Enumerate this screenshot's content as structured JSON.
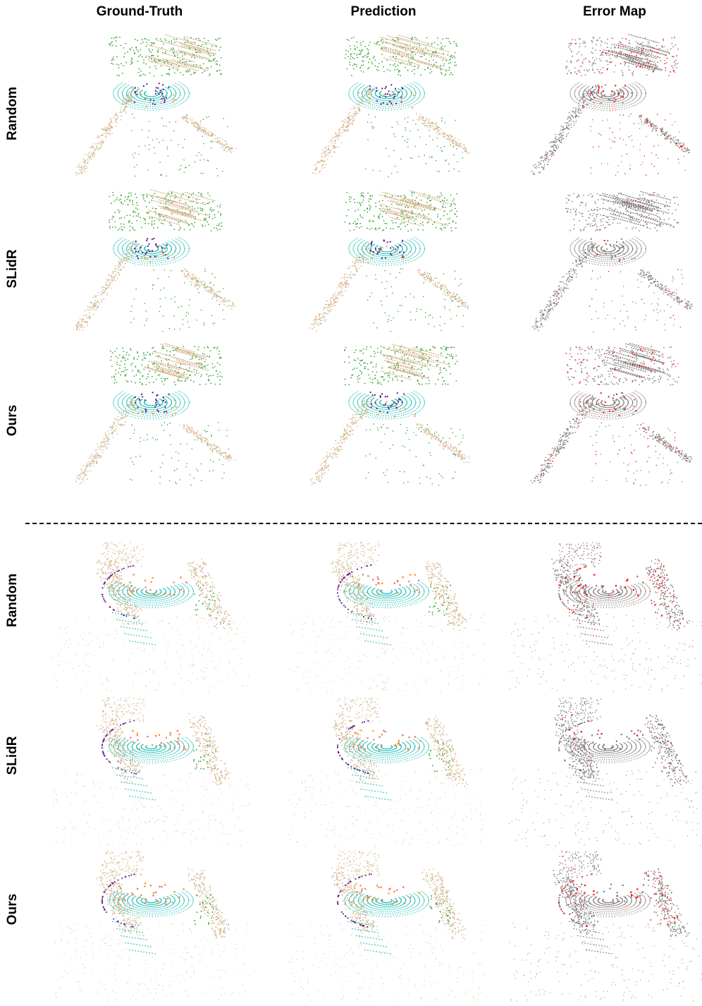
{
  "figure": {
    "columns": [
      "Ground-Truth",
      "Prediction",
      "Error Map"
    ],
    "top_block_rows": [
      "Random",
      "SLidR",
      "Ours"
    ],
    "bottom_block_rows": [
      "Random",
      "SLidR",
      "Ours"
    ]
  },
  "colors": {
    "vegetation": "#2ca02c",
    "terrain": "#d2b48c",
    "drivable": "#20c0b8",
    "vehicle": "#5a1a8c",
    "pedestrian": "#ff8c1a",
    "barrier": "#f46a5a",
    "error_correct": "#808080",
    "error_wrong": "#ff0000"
  }
}
